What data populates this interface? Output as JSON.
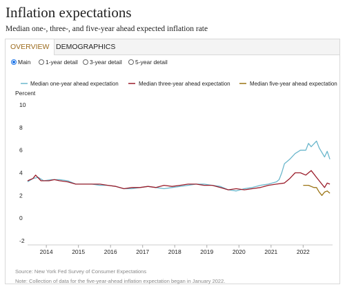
{
  "header": {
    "title": "Inflation expectations",
    "subtitle": "Median one-, three-, and five-year ahead expected inflation rate"
  },
  "tabs": [
    {
      "label": "OVERVIEW",
      "active": true
    },
    {
      "label": "DEMOGRAPHICS",
      "active": false
    }
  ],
  "radio_options": [
    {
      "label": "Main",
      "selected": true
    },
    {
      "label": "1-year detail",
      "selected": false
    },
    {
      "label": "3-year detail",
      "selected": false
    },
    {
      "label": "5-year detail",
      "selected": false
    }
  ],
  "colors": {
    "one_year": "#6bb7cc",
    "three_year": "#9b1c2a",
    "five_year": "#9a7313",
    "accent": "#9b6a1c",
    "radio": "#1a73e8"
  },
  "chart_data": {
    "type": "line",
    "title": "",
    "xlabel": "",
    "ylabel": "Percent",
    "ylim": [
      -2,
      10
    ],
    "yticks": [
      -2,
      0,
      2,
      4,
      6,
      8,
      10
    ],
    "xlim": [
      "2013-06",
      "2022-12"
    ],
    "xticks": [
      "2014",
      "2015",
      "2016",
      "2017",
      "2018",
      "2019",
      "2020",
      "2021",
      "2022"
    ],
    "legend": "top-right",
    "series": [
      {
        "name": "Median one-year ahead expectation",
        "color": "#6bb7cc",
        "points": [
          [
            "2013-06",
            3.2
          ],
          [
            "2013-08",
            3.5
          ],
          [
            "2013-10",
            3.6
          ],
          [
            "2013-12",
            3.3
          ],
          [
            "2014-03",
            3.4
          ],
          [
            "2014-06",
            3.4
          ],
          [
            "2014-09",
            3.3
          ],
          [
            "2014-12",
            3.0
          ],
          [
            "2015-03",
            3.0
          ],
          [
            "2015-06",
            3.0
          ],
          [
            "2015-09",
            2.9
          ],
          [
            "2015-12",
            2.9
          ],
          [
            "2016-03",
            2.8
          ],
          [
            "2016-06",
            2.6
          ],
          [
            "2016-09",
            2.6
          ],
          [
            "2016-12",
            2.7
          ],
          [
            "2017-03",
            2.8
          ],
          [
            "2017-06",
            2.7
          ],
          [
            "2017-09",
            2.6
          ],
          [
            "2017-12",
            2.7
          ],
          [
            "2018-03",
            2.8
          ],
          [
            "2018-06",
            2.9
          ],
          [
            "2018-09",
            3.0
          ],
          [
            "2018-12",
            3.0
          ],
          [
            "2019-03",
            2.9
          ],
          [
            "2019-06",
            2.8
          ],
          [
            "2019-09",
            2.5
          ],
          [
            "2019-12",
            2.4
          ],
          [
            "2020-03",
            2.6
          ],
          [
            "2020-06",
            2.7
          ],
          [
            "2020-09",
            2.9
          ],
          [
            "2020-12",
            3.0
          ],
          [
            "2021-03",
            3.2
          ],
          [
            "2021-04",
            3.4
          ],
          [
            "2021-05",
            4.0
          ],
          [
            "2021-06",
            4.8
          ],
          [
            "2021-08",
            5.2
          ],
          [
            "2021-10",
            5.7
          ],
          [
            "2021-12",
            6.0
          ],
          [
            "2022-02",
            6.0
          ],
          [
            "2022-03",
            6.6
          ],
          [
            "2022-04",
            6.3
          ],
          [
            "2022-06",
            6.8
          ],
          [
            "2022-07",
            6.2
          ],
          [
            "2022-09",
            5.4
          ],
          [
            "2022-10",
            5.9
          ],
          [
            "2022-11",
            5.2
          ]
        ]
      },
      {
        "name": "Median three-year ahead expectation",
        "color": "#9b1c2a",
        "points": [
          [
            "2013-06",
            3.3
          ],
          [
            "2013-08",
            3.5
          ],
          [
            "2013-09",
            3.8
          ],
          [
            "2013-11",
            3.3
          ],
          [
            "2014-02",
            3.3
          ],
          [
            "2014-04",
            3.4
          ],
          [
            "2014-06",
            3.3
          ],
          [
            "2014-09",
            3.2
          ],
          [
            "2014-12",
            3.0
          ],
          [
            "2015-03",
            3.0
          ],
          [
            "2015-06",
            3.0
          ],
          [
            "2015-09",
            3.0
          ],
          [
            "2015-12",
            2.9
          ],
          [
            "2016-03",
            2.8
          ],
          [
            "2016-06",
            2.6
          ],
          [
            "2016-09",
            2.7
          ],
          [
            "2016-12",
            2.7
          ],
          [
            "2017-03",
            2.8
          ],
          [
            "2017-06",
            2.7
          ],
          [
            "2017-09",
            2.9
          ],
          [
            "2017-12",
            2.8
          ],
          [
            "2018-03",
            2.9
          ],
          [
            "2018-06",
            3.0
          ],
          [
            "2018-09",
            3.0
          ],
          [
            "2018-12",
            2.9
          ],
          [
            "2019-03",
            2.9
          ],
          [
            "2019-06",
            2.7
          ],
          [
            "2019-09",
            2.5
          ],
          [
            "2019-12",
            2.6
          ],
          [
            "2020-03",
            2.5
          ],
          [
            "2020-06",
            2.6
          ],
          [
            "2020-09",
            2.7
          ],
          [
            "2020-12",
            2.9
          ],
          [
            "2021-03",
            3.0
          ],
          [
            "2021-06",
            3.1
          ],
          [
            "2021-08",
            3.5
          ],
          [
            "2021-10",
            4.0
          ],
          [
            "2021-12",
            4.0
          ],
          [
            "2022-02",
            3.8
          ],
          [
            "2022-04",
            4.2
          ],
          [
            "2022-06",
            3.6
          ],
          [
            "2022-07",
            3.3
          ],
          [
            "2022-09",
            2.7
          ],
          [
            "2022-10",
            3.1
          ],
          [
            "2022-11",
            3.0
          ]
        ]
      },
      {
        "name": "Median five-year ahead expectation",
        "color": "#9a7313",
        "points": [
          [
            "2022-01",
            2.9
          ],
          [
            "2022-03",
            2.9
          ],
          [
            "2022-05",
            2.7
          ],
          [
            "2022-06",
            2.7
          ],
          [
            "2022-07",
            2.3
          ],
          [
            "2022-08",
            2.0
          ],
          [
            "2022-09",
            2.3
          ],
          [
            "2022-10",
            2.4
          ],
          [
            "2022-11",
            2.2
          ]
        ]
      }
    ]
  },
  "footer": {
    "source": "Source: New York Fed Survey of Consumer Expectations",
    "note": "Note: Collection of data for the five-year-ahead inflation expectation began in January 2022."
  }
}
